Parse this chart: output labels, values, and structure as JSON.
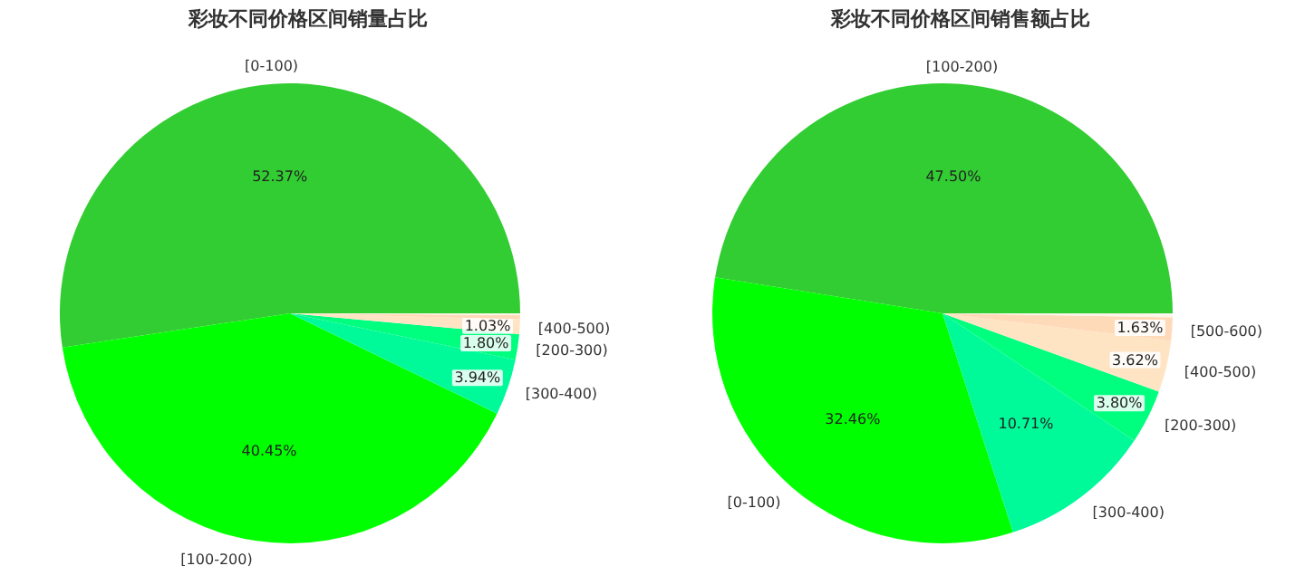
{
  "chart_data": [
    {
      "type": "pie",
      "title": "彩妆不同价格区间销量占比",
      "categories": [
        "[0-100)",
        "[100-200)",
        "[300-400)",
        "[200-300)",
        "[400-500)",
        null,
        null
      ],
      "values": [
        52.37,
        40.45,
        3.94,
        1.8,
        1.03,
        0.29,
        0.12
      ],
      "colors": [
        "#32cd32",
        "#00ff00",
        "#00fa9a",
        "#00ff7f",
        "#ffe4c4",
        "#ffdab9",
        "#fdf5e6"
      ],
      "value_labels": [
        "52.37%",
        "40.45%",
        "3.94%",
        "1.80%",
        "1.03%",
        null,
        null
      ]
    },
    {
      "type": "pie",
      "title": "彩妆不同价格区间销售额占比",
      "categories": [
        "[100-200)",
        "[0-100)",
        "[300-400)",
        "[200-300)",
        "[400-500)",
        "[500-600)",
        null,
        null
      ],
      "values": [
        47.5,
        32.46,
        10.71,
        3.8,
        3.62,
        1.63,
        0.2,
        0.08
      ],
      "colors": [
        "#32cd32",
        "#00ff00",
        "#00fa9a",
        "#00ff7f",
        "#ffe4c4",
        "#ffdab9",
        "#fdf5e6",
        "#faf0e6"
      ],
      "value_labels": [
        "47.50%",
        "32.46%",
        "10.71%",
        "3.80%",
        "3.62%",
        "1.63%",
        null,
        null
      ]
    }
  ]
}
